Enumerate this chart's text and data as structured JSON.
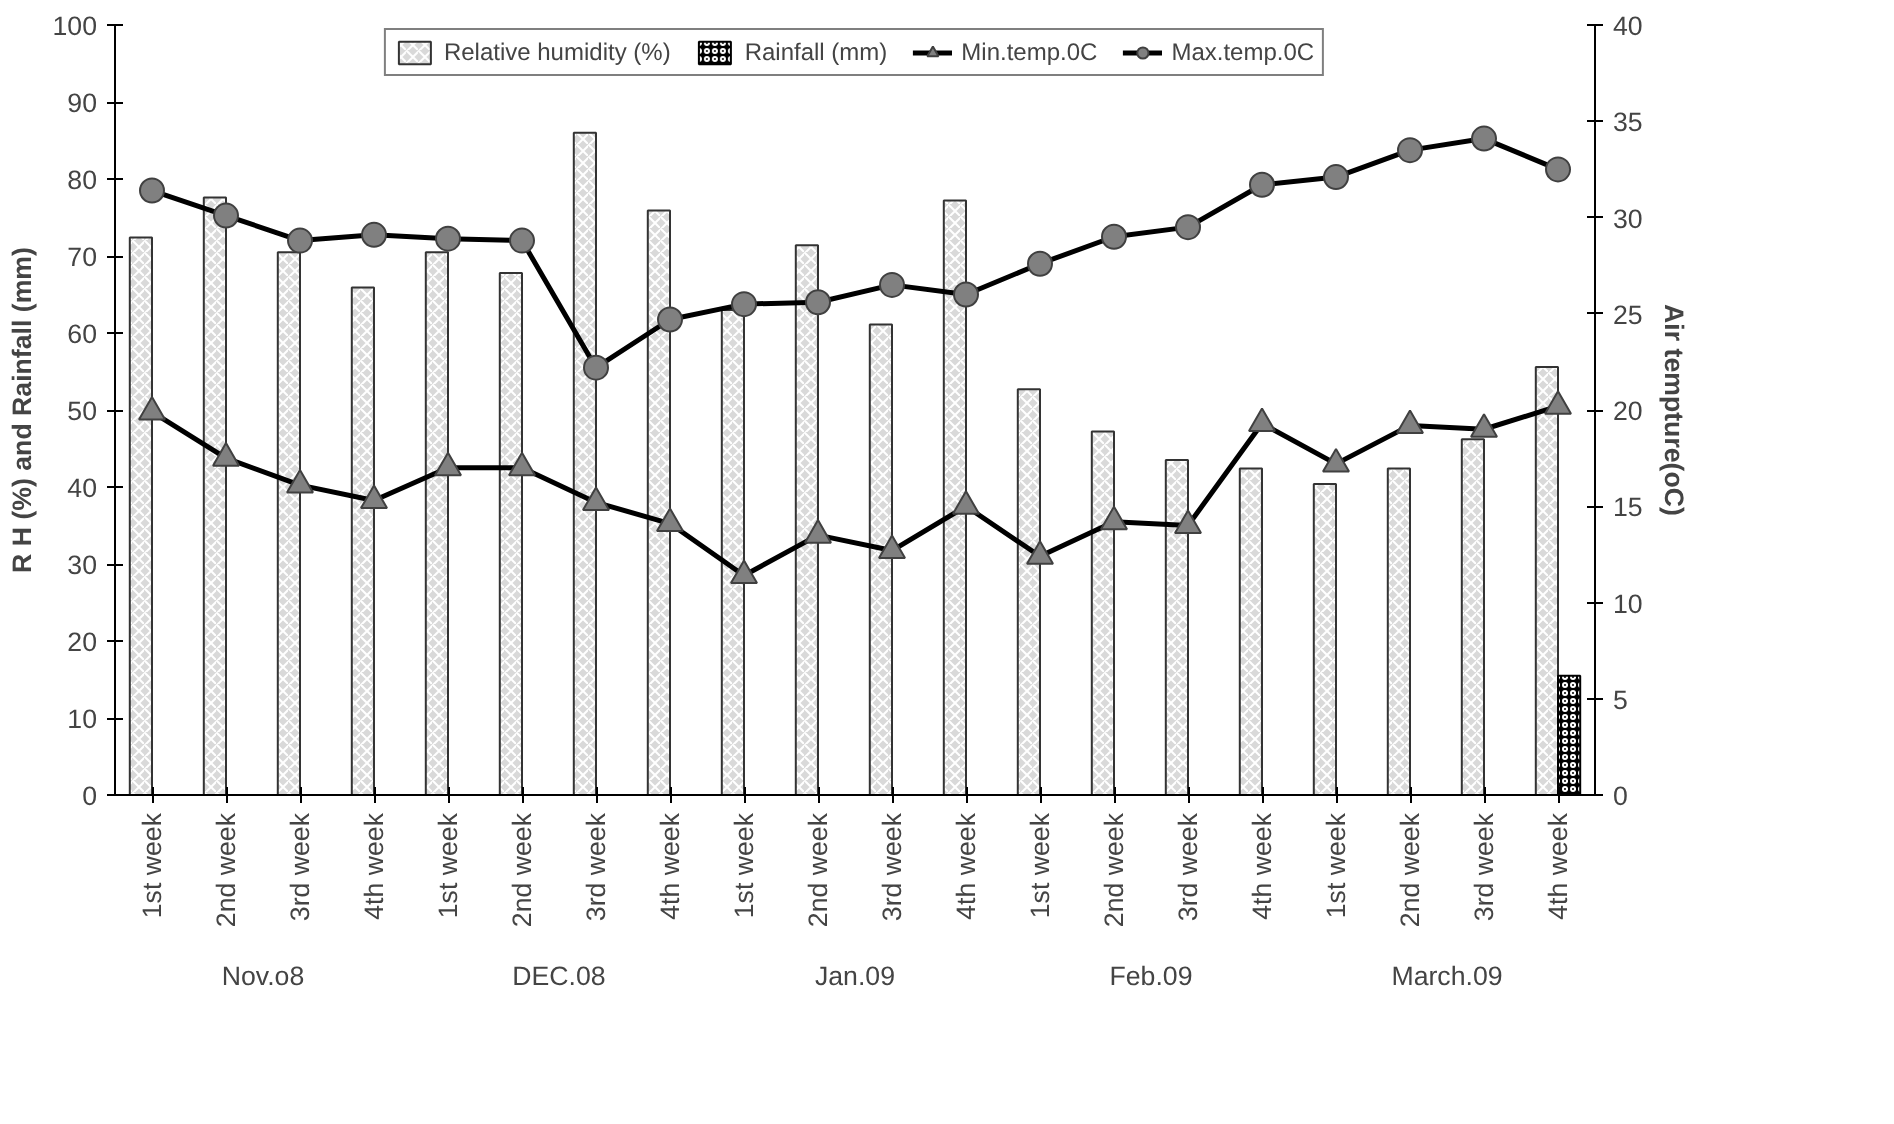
{
  "chart_data": {
    "type": "bar",
    "ylabel": "R H (%) and Rainfall (mm)",
    "y2label": "Air tempture(oC)",
    "categories": [
      "1st week",
      "2nd week",
      "3rd week",
      "4th week",
      "1st week",
      "2nd week",
      "3rd week",
      "4th week",
      "1st week",
      "2nd week",
      "3rd week",
      "4th week",
      "1st week",
      "2nd week",
      "3rd week",
      "4th week",
      "1st week",
      "2nd week",
      "3rd week",
      "4th week"
    ],
    "annotations": [
      "Nov.o8",
      "DEC.08",
      "Jan.09",
      "Feb.09",
      "March.09"
    ],
    "series": [
      {
        "name": "Relative humidity (%)",
        "color": "#d9d9d9",
        "values": [
          72.4,
          77.6,
          70.5,
          65.9,
          70.5,
          67.8,
          86.0,
          75.9,
          63.0,
          71.4,
          61.1,
          77.2,
          52.7,
          47.2,
          43.5,
          42.4,
          40.4,
          42.4,
          46.2,
          55.6
        ]
      },
      {
        "name": "Rainfall (mm)",
        "color": "#000000",
        "values": [
          0,
          0,
          0,
          0,
          0,
          0,
          0,
          0,
          0,
          0,
          0,
          0,
          0,
          0,
          0,
          0,
          0,
          0,
          0,
          15.5
        ]
      },
      {
        "name": "Min.temp.0C",
        "type": "line",
        "axis": "y2",
        "marker": "triangle",
        "color": "#000000",
        "values": [
          19.9,
          17.5,
          16.1,
          15.3,
          17.0,
          17.0,
          15.2,
          14.1,
          11.4,
          13.5,
          12.7,
          15.0,
          12.4,
          14.2,
          14.0,
          19.3,
          17.2,
          19.2,
          19.0,
          20.2
        ]
      },
      {
        "name": "Max.temp.0C",
        "type": "line",
        "axis": "y2",
        "marker": "circle",
        "color": "#000000",
        "values": [
          31.4,
          30.1,
          28.8,
          29.1,
          28.9,
          28.8,
          22.2,
          24.7,
          25.5,
          25.6,
          26.5,
          26.0,
          27.6,
          29.0,
          29.5,
          31.7,
          32.1,
          33.5,
          34.1,
          32.5
        ]
      }
    ],
    "ylim": [
      0,
      100
    ],
    "yticks": [
      0,
      10,
      20,
      30,
      40,
      50,
      60,
      70,
      80,
      90,
      100
    ],
    "y2lim": [
      0,
      40
    ],
    "y2ticks": [
      0,
      5,
      10,
      15,
      20,
      25,
      30,
      35,
      40
    ],
    "grid": false,
    "legend": "top"
  }
}
